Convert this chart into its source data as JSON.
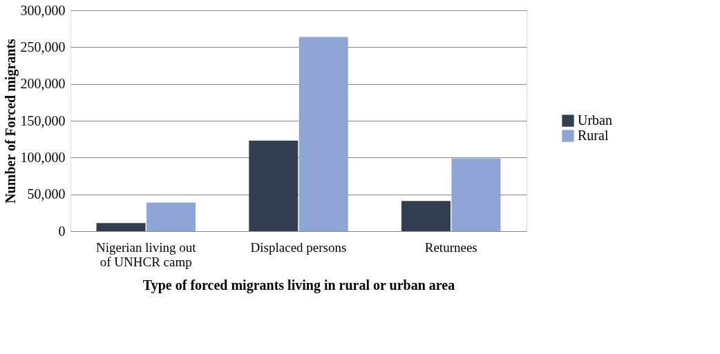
{
  "chart_data": {
    "type": "bar",
    "xlabel": "Type of forced migrants living in rural or urban area",
    "ylabel": "Number of Forced migrants",
    "categories": [
      "Nigerian living out\nof UNHCR camp",
      "Displaced persons",
      "Returnees"
    ],
    "series": [
      {
        "name": "Urban",
        "color": "#333f50",
        "values": [
          11000,
          123000,
          41000
        ]
      },
      {
        "name": "Rural",
        "color": "#8ea5d6",
        "values": [
          39000,
          264000,
          99000
        ]
      }
    ],
    "ylim": [
      0,
      300000
    ],
    "yticks": [
      0,
      {
        "value": 50000,
        "label": "50,000"
      },
      {
        "value": 100000,
        "label": "100,000"
      },
      {
        "value": 150000,
        "label": "150,000"
      },
      {
        "value": 200000,
        "label": "200,000"
      },
      {
        "value": 250000,
        "label": "250,000"
      },
      {
        "value": 300000,
        "label": "300,000"
      }
    ],
    "grid": "y",
    "legend": "right"
  }
}
